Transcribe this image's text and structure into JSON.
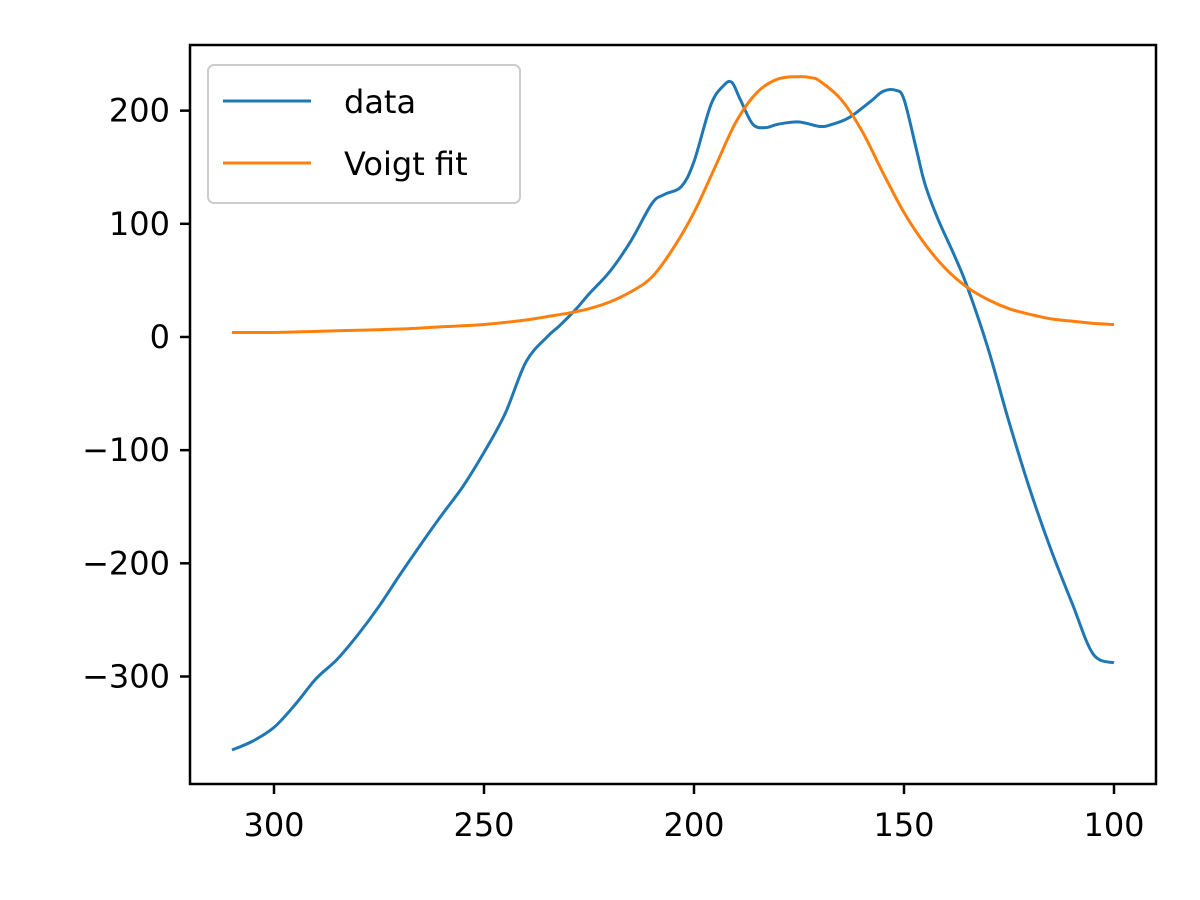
{
  "chart_data": {
    "type": "line",
    "title": "",
    "xlabel": "",
    "ylabel": "",
    "xlim": [
      320,
      90
    ],
    "ylim": [
      -395,
      258
    ],
    "x_ticks": [
      300,
      250,
      200,
      150,
      100
    ],
    "y_ticks": [
      200,
      100,
      0,
      -100,
      -200,
      -300
    ],
    "x_tick_labels": [
      "300",
      "250",
      "200",
      "150",
      "100"
    ],
    "y_tick_labels": [
      "200",
      "100",
      "0",
      "−100",
      "−200",
      "−300"
    ],
    "grid": false,
    "legend_position": "top-left",
    "series": [
      {
        "name": "data",
        "color": "#1f77b4",
        "x": [
          310,
          305,
          300,
          295,
          290,
          285,
          280,
          275,
          270,
          265,
          260,
          255,
          250,
          245,
          240,
          235,
          232,
          228,
          225,
          220,
          215,
          210,
          207,
          203,
          200,
          196,
          193,
          191,
          189,
          186,
          183,
          180,
          175,
          170,
          167,
          163,
          158,
          155,
          152,
          150,
          147,
          145,
          142,
          138,
          135,
          130,
          125,
          120,
          115,
          110,
          105,
          100
        ],
        "y": [
          -365,
          -357,
          -345,
          -325,
          -302,
          -285,
          -263,
          -238,
          -210,
          -183,
          -157,
          -132,
          -102,
          -68,
          -22,
          0,
          10,
          25,
          38,
          58,
          85,
          118,
          126,
          133,
          155,
          205,
          222,
          225,
          210,
          188,
          185,
          188,
          190,
          186,
          188,
          194,
          208,
          217,
          218,
          210,
          165,
          135,
          105,
          72,
          45,
          -10,
          -75,
          -135,
          -188,
          -235,
          -280,
          -288
        ]
      },
      {
        "name": "Voigt fit",
        "color": "#ff7f0e",
        "x": [
          310,
          300,
          290,
          280,
          270,
          260,
          250,
          240,
          235,
          230,
          225,
          220,
          215,
          210,
          205,
          200,
          195,
          190,
          185,
          180,
          175,
          172,
          170,
          165,
          160,
          155,
          150,
          145,
          140,
          135,
          130,
          125,
          120,
          115,
          110,
          105,
          100
        ],
        "y": [
          4,
          4,
          5,
          6,
          7,
          9,
          11,
          15,
          18,
          21,
          25,
          31,
          40,
          53,
          78,
          110,
          150,
          190,
          216,
          228,
          230,
          229,
          226,
          210,
          182,
          145,
          110,
          82,
          60,
          44,
          33,
          25,
          20,
          16,
          14,
          12,
          11
        ]
      }
    ]
  }
}
